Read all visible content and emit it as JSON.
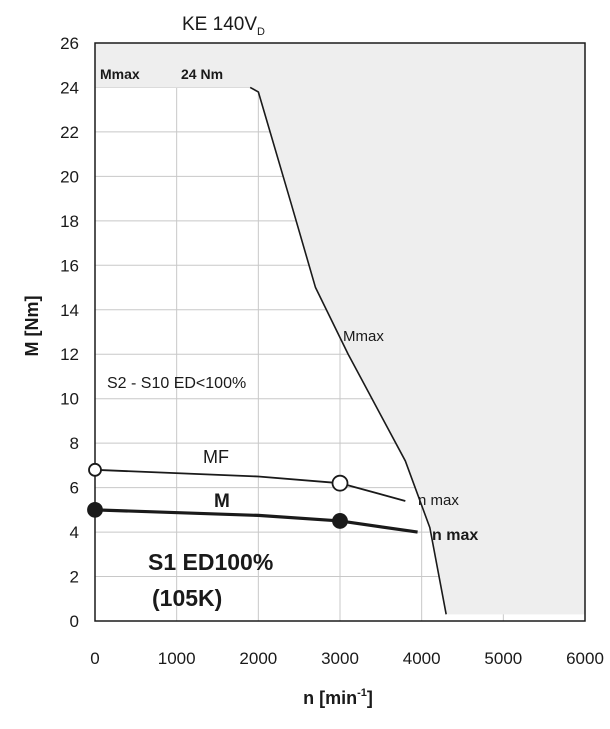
{
  "chart_data": {
    "type": "line",
    "title": "KE 140V",
    "title_sub": "D",
    "xlabel": "n [min",
    "xlabel_sup": "-1",
    "xlabel_close": "]",
    "ylabel": "M [Nm]",
    "xlim": [
      0,
      6000
    ],
    "ylim": [
      0,
      26
    ],
    "x_ticks": [
      0,
      1000,
      2000,
      3000,
      4000,
      5000,
      6000
    ],
    "y_ticks": [
      0,
      2,
      4,
      6,
      8,
      10,
      12,
      14,
      16,
      18,
      20,
      22,
      24,
      26
    ],
    "grid": true,
    "colors": {
      "axis": "#1a1a1a",
      "grid": "#c8c8c8",
      "region_fill": "#eeeeee",
      "line": "#1a1a1a"
    },
    "region_boundary": [
      [
        0,
        24
      ],
      [
        1900,
        24
      ],
      [
        2000,
        23.8
      ],
      [
        2400,
        18.8
      ],
      [
        2700,
        15
      ],
      [
        3100,
        12
      ],
      [
        3800,
        7.2
      ],
      [
        4100,
        4.2
      ],
      [
        4300,
        0.3
      ],
      [
        6000,
        0.3
      ]
    ],
    "series": [
      {
        "name": "Mmax",
        "points": [
          [
            1900,
            24
          ],
          [
            2000,
            23.8
          ],
          [
            2400,
            18.8
          ],
          [
            2700,
            15
          ],
          [
            3100,
            12
          ],
          [
            3800,
            7.2
          ],
          [
            4100,
            4.2
          ],
          [
            4300,
            0.3
          ]
        ],
        "weight": "thin",
        "markers": []
      },
      {
        "name": "MF",
        "points": [
          [
            0,
            6.8
          ],
          [
            2000,
            6.5
          ],
          [
            3000,
            6.2
          ],
          [
            3800,
            5.4
          ]
        ],
        "weight": "medium",
        "markers": [
          [
            0,
            6.8,
            "open"
          ],
          [
            3000,
            6.2,
            "open-large"
          ]
        ]
      },
      {
        "name": "M",
        "points": [
          [
            0,
            5.0
          ],
          [
            2000,
            4.75
          ],
          [
            3000,
            4.5
          ],
          [
            3950,
            4.0
          ]
        ],
        "weight": "thick",
        "markers": [
          [
            0,
            5.0,
            "filled"
          ],
          [
            3000,
            4.5,
            "filled"
          ]
        ]
      }
    ],
    "annotations": {
      "mmax_top": "Mmax",
      "mmax_value": "24 Nm",
      "mmax_curve": "Mmax",
      "region_label": "S2 - S10  ED<100%",
      "mf_label": "MF",
      "m_label": "M",
      "nmax_mf": "n max",
      "nmax_m": "n max",
      "s1_line1": "S1 ED100%",
      "s1_line2": "(105K)"
    }
  }
}
